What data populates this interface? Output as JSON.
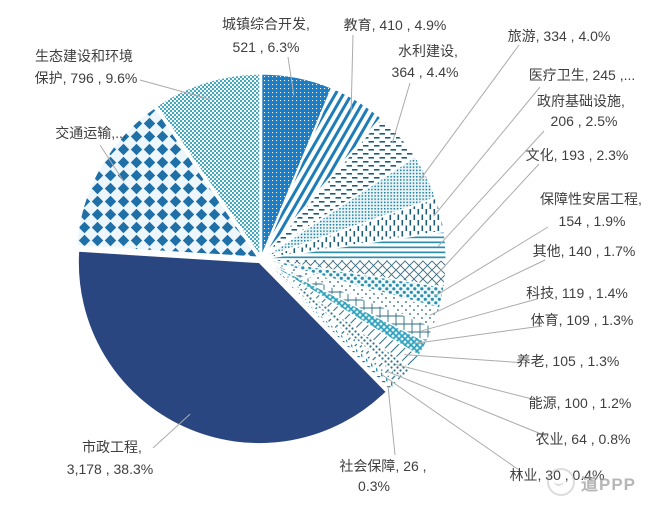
{
  "watermark": {
    "text": "道PPP"
  },
  "chart_data": {
    "type": "pie",
    "legend": "none",
    "labels": "outside-with-leader-lines",
    "start_angle_deg": 0,
    "direction": "clockwise",
    "label_color": "#3f3f3f",
    "leader_line_color": "#ababab",
    "slices": [
      {
        "name": "城镇综合开发",
        "value": 521,
        "percent": 6.3,
        "display_lines": [
          "城镇综合开发,",
          "521 , 6.3%"
        ],
        "fill": "white-dots-on-blue",
        "color": "#1D7DC4"
      },
      {
        "name": "教育",
        "value": 410,
        "percent": 4.9,
        "display_lines": [
          "教育, 410 , 4.9%"
        ],
        "fill": "diagonal-stripes",
        "color": "#1E7CB8"
      },
      {
        "name": "水利建设",
        "value": 364,
        "percent": 4.4,
        "display_lines": [
          "水利建设,",
          "364 , 4.4%"
        ],
        "fill": "horizontal-dashes",
        "color": "#1F5C78"
      },
      {
        "name": "旅游",
        "value": 334,
        "percent": 4.0,
        "display_lines": [
          "旅游, 334 , 4.0%"
        ],
        "fill": "dense-dot-grid",
        "color": "#1F7E9E"
      },
      {
        "name": "医疗卫生",
        "value": 245,
        "percent": 3.0,
        "display_lines": [
          "医疗卫生, 245 ,..."
        ],
        "fill": "vertical-dashes",
        "color": "#1F5C78"
      },
      {
        "name": "政府基础设施",
        "value": 206,
        "percent": 2.5,
        "display_lines": [
          "政府基础设施,",
          "206 , 2.5%"
        ],
        "fill": "horizontal-lines",
        "color": "#2E8FAC"
      },
      {
        "name": "文化",
        "value": 193,
        "percent": 2.3,
        "display_lines": [
          "文化, 193 , 2.3%"
        ],
        "fill": "thin-crosshatch",
        "color": "#3A6B80"
      },
      {
        "name": "保障性安居工程",
        "value": 154,
        "percent": 1.9,
        "display_lines": [
          "保障性安居工程,",
          "154 , 1.9%"
        ],
        "fill": "dense-balls",
        "color": "#2E8FAC"
      },
      {
        "name": "其他",
        "value": 140,
        "percent": 1.7,
        "display_lines": [
          "其他, 140 , 1.7%"
        ],
        "fill": "sparse-dots",
        "color": "#2F5D70"
      },
      {
        "name": "科技",
        "value": 119,
        "percent": 1.4,
        "display_lines": [
          "科技, 119 , 1.4%"
        ],
        "fill": "grid",
        "color": "#2F6E84"
      },
      {
        "name": "体育",
        "value": 109,
        "percent": 1.3,
        "display_lines": [
          "体育, 109 , 1.3%"
        ],
        "fill": "teal-crosshatch",
        "color": "#2FA0BC"
      },
      {
        "name": "养老",
        "value": 105,
        "percent": 1.3,
        "display_lines": [
          "养老, 105 , 1.3%"
        ],
        "fill": "thin-diagonal",
        "color": "#2F6E84"
      },
      {
        "name": "能源",
        "value": 100,
        "percent": 1.2,
        "display_lines": [
          "能源, 100 , 1.2%"
        ],
        "fill": "medium-dots",
        "color": "#2F6E84"
      },
      {
        "name": "农业",
        "value": 64,
        "percent": 0.8,
        "display_lines": [
          "农业, 64 , 0.8%"
        ],
        "fill": "diagonal-dashes",
        "color": "#2F6E84"
      },
      {
        "name": "林业",
        "value": 30,
        "percent": 0.4,
        "display_lines": [
          "林业, 30 , 0.4%"
        ],
        "fill": "vertical-lines",
        "color": "#2E8FAC"
      },
      {
        "name": "社会保障",
        "value": 26,
        "percent": 0.3,
        "display_lines": [
          "社会保障, 26 ,",
          "0.3%"
        ],
        "fill": "horizontal-thin-lines",
        "color": "#2F6E84"
      },
      {
        "name": "市政工程",
        "value": 3178,
        "percent": 38.3,
        "display_lines": [
          "市政工程,",
          "3,178 , 38.3%"
        ],
        "fill": "solid",
        "color": "#2A4680"
      },
      {
        "name": "交通运输",
        "value": 1193,
        "percent": 14.4,
        "display_lines": [
          "交通运输,..."
        ],
        "fill": "large-diamonds",
        "color": "#2070A8",
        "value_estimated_from_chart": true
      },
      {
        "name": "生态建设和环境保护",
        "value": 796,
        "percent": 9.6,
        "display_lines": [
          "生态建设和环境",
          "保护, 796 , 9.6%"
        ],
        "fill": "fine-check",
        "color": "#4AA5BF"
      }
    ]
  }
}
